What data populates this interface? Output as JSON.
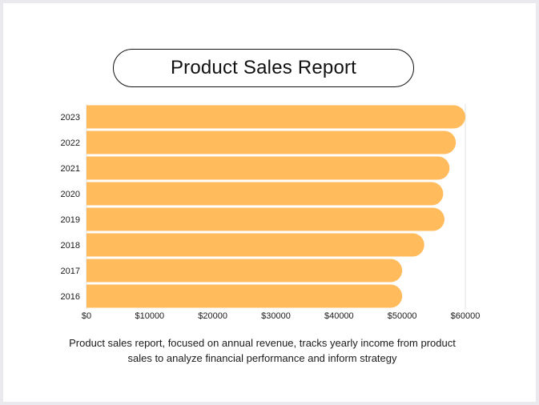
{
  "page": {
    "title": "Product Sales Report",
    "caption": "Product sales report, focused on annual revenue, tracks yearly income from product sales to analyze financial performance and inform strategy"
  },
  "colors": {
    "bar": "#ffbb5c",
    "gridline": "#e2e2e2",
    "text": "#1a1a1a",
    "background": "#ffffff"
  },
  "chart_data": {
    "type": "bar",
    "orientation": "horizontal",
    "title": "Product Sales Report",
    "xlabel": "",
    "ylabel": "",
    "categories": [
      "2023",
      "2022",
      "2021",
      "2020",
      "2019",
      "2018",
      "2017",
      "2016"
    ],
    "values": [
      60000,
      58500,
      57500,
      56500,
      56700,
      53500,
      50000,
      50000
    ],
    "xlim": [
      0,
      60000
    ],
    "x_ticks": [
      0,
      10000,
      20000,
      30000,
      40000,
      50000,
      60000
    ],
    "x_tick_labels": [
      "$0",
      "$10000",
      "$20000",
      "$30000",
      "$40000",
      "$50000",
      "$60000"
    ],
    "grid": "vertical at max tick",
    "legend": "none"
  }
}
